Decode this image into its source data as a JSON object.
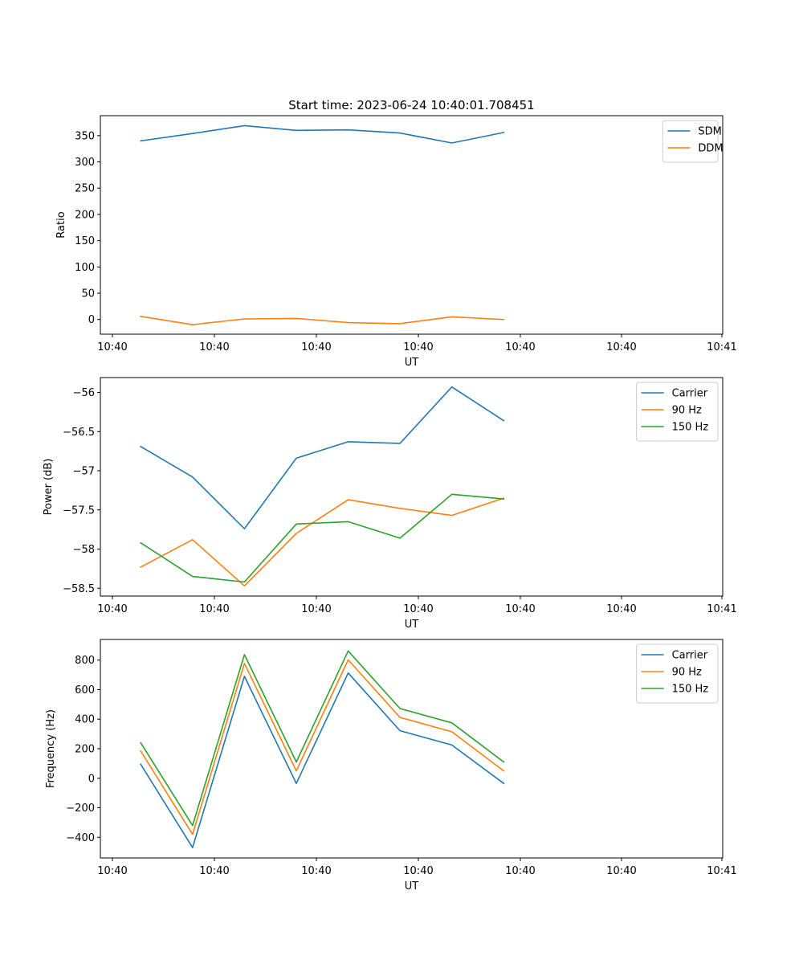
{
  "figure_title": "Start time: 2023-06-24 10:40:01.708451",
  "colors": {
    "blue": "#1f77b4",
    "orange": "#ff7f0e",
    "green": "#2ca02c"
  },
  "chart_data": [
    {
      "type": "line",
      "xlabel": "UT",
      "ylabel": "Ratio",
      "x": [
        1,
        2,
        3,
        4,
        5,
        6,
        7,
        8
      ],
      "x_ticks": [
        "10:40",
        "10:40",
        "10:40",
        "10:40",
        "10:40",
        "10:40",
        "10:41"
      ],
      "xlim": [
        0.814,
        9.226
      ],
      "ylim": [
        -28,
        388
      ],
      "y_ticks": [
        0,
        50,
        100,
        150,
        200,
        250,
        300,
        350
      ],
      "legend_position": "top-right",
      "grid": false,
      "series": [
        {
          "name": "SDM",
          "color": "#1f77b4",
          "values": [
            340,
            354,
            369,
            360,
            361,
            355,
            336,
            356
          ]
        },
        {
          "name": "DDM",
          "color": "#ff7f0e",
          "values": [
            6,
            -10,
            1,
            2,
            -6,
            -8,
            5,
            0
          ]
        }
      ]
    },
    {
      "type": "line",
      "xlabel": "UT",
      "ylabel": "Power (dB)",
      "x": [
        1,
        2,
        3,
        4,
        5,
        6,
        7,
        8
      ],
      "x_ticks": [
        "10:40",
        "10:40",
        "10:40",
        "10:40",
        "10:40",
        "10:40",
        "10:41"
      ],
      "xlim": [
        0.814,
        9.226
      ],
      "ylim": [
        -58.6,
        -55.81
      ],
      "y_ticks": [
        -58.5,
        -58.0,
        -57.5,
        -57.0,
        -56.5,
        -56.0
      ],
      "legend_position": "top-right",
      "grid": false,
      "series": [
        {
          "name": "Carrier",
          "color": "#1f77b4",
          "values": [
            -56.69,
            -57.08,
            -57.74,
            -56.84,
            -56.63,
            -56.65,
            -55.93,
            -56.36
          ]
        },
        {
          "name": "90 Hz",
          "color": "#ff7f0e",
          "values": [
            -58.23,
            -57.88,
            -58.47,
            -57.8,
            -57.37,
            -57.48,
            -57.57,
            -57.35
          ]
        },
        {
          "name": "150 Hz",
          "color": "#2ca02c",
          "values": [
            -57.92,
            -58.35,
            -58.42,
            -57.68,
            -57.65,
            -57.86,
            -57.3,
            -57.36
          ]
        }
      ]
    },
    {
      "type": "line",
      "xlabel": "UT",
      "ylabel": "Frequency (Hz)",
      "x": [
        1,
        2,
        3,
        4,
        5,
        6,
        7,
        8
      ],
      "x_ticks": [
        "10:40",
        "10:40",
        "10:40",
        "10:40",
        "10:40",
        "10:40",
        "10:41"
      ],
      "xlim": [
        0.814,
        9.226
      ],
      "ylim": [
        -540,
        940
      ],
      "y_ticks": [
        -400,
        -200,
        0,
        200,
        400,
        600,
        800
      ],
      "legend_position": "top-right",
      "grid": false,
      "series": [
        {
          "name": "Carrier",
          "color": "#1f77b4",
          "values": [
            95,
            -470,
            690,
            -35,
            713,
            322,
            225,
            -35
          ]
        },
        {
          "name": "90 Hz",
          "color": "#ff7f0e",
          "values": [
            185,
            -380,
            778,
            50,
            802,
            412,
            315,
            50
          ]
        },
        {
          "name": "150 Hz",
          "color": "#2ca02c",
          "values": [
            240,
            -320,
            837,
            110,
            862,
            472,
            375,
            110
          ]
        }
      ]
    }
  ]
}
